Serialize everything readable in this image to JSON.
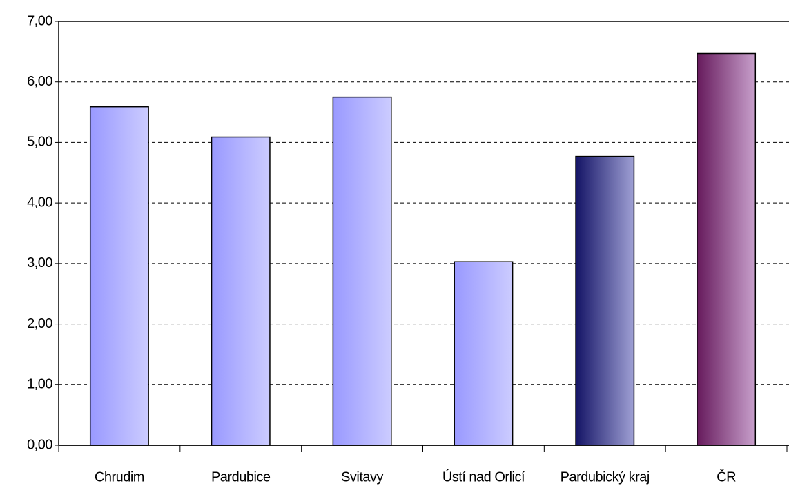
{
  "chart_data": {
    "type": "bar",
    "categories": [
      "Chrudim",
      "Pardubice",
      "Svitavy",
      "Ústí nad Orlicí",
      "Pardubický kraj",
      "ČR"
    ],
    "values": [
      5.59,
      5.09,
      5.75,
      3.03,
      4.77,
      6.47
    ],
    "gradients": [
      [
        "#9999ff",
        "#ccccff"
      ],
      [
        "#9999ff",
        "#ccccff"
      ],
      [
        "#9999ff",
        "#ccccff"
      ],
      [
        "#9999ff",
        "#ccccff"
      ],
      [
        "#141466",
        "#9fa0d4"
      ],
      [
        "#661a5c",
        "#c8a0cc"
      ]
    ],
    "ylim": [
      0,
      7
    ],
    "yticks": [
      {
        "value": 0,
        "label": "0,00"
      },
      {
        "value": 1,
        "label": "1,00"
      },
      {
        "value": 2,
        "label": "2,00"
      },
      {
        "value": 3,
        "label": "3,00"
      },
      {
        "value": 4,
        "label": "4,00"
      },
      {
        "value": 5,
        "label": "5,00"
      },
      {
        "value": 6,
        "label": "6,00"
      },
      {
        "value": 7,
        "label": "7,00"
      }
    ],
    "grid": true
  }
}
